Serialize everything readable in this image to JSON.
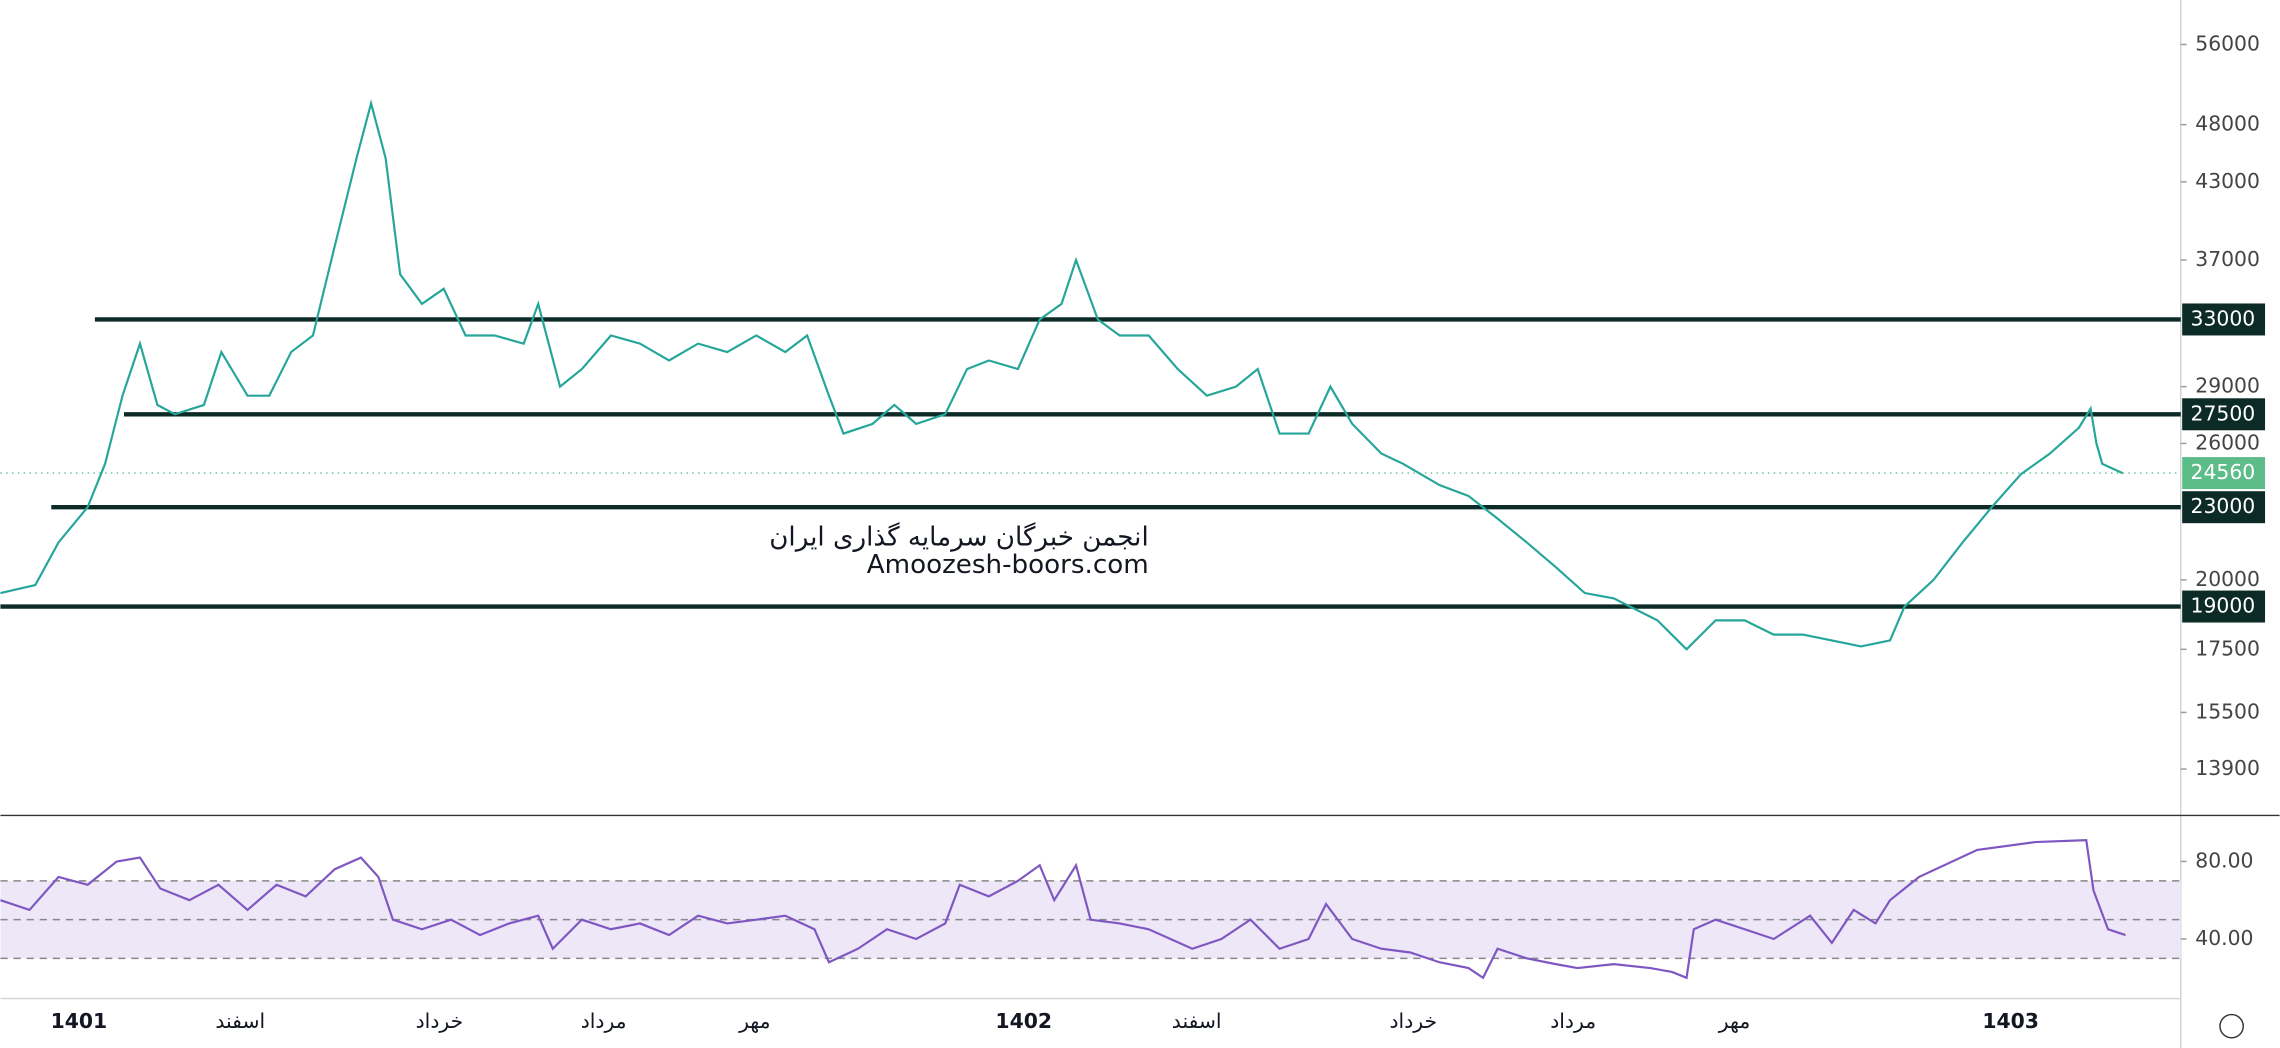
{
  "chart_data": [
    {
      "type": "line",
      "scale": "log",
      "watermark": [
        "انجمن خبرگان سرمایه گذاری ایران",
        "Amoozesh-boors.com"
      ],
      "xlim": [
        0,
        1500
      ],
      "ylim": [
        12750,
        61000
      ],
      "yticks": [
        56000,
        48000,
        43000,
        37000,
        29000,
        26000,
        20000,
        17500,
        15500,
        13900
      ],
      "levels": [
        33000,
        27500,
        23000,
        19000
      ],
      "level_starts": [
        65,
        85,
        35,
        0
      ],
      "level_color": "#0d2b26",
      "last_price": 24560,
      "last_price_color": "#5cbd88",
      "series": [
        {
          "color": "#26a69a",
          "x": [
            0,
            24,
            40,
            60,
            72,
            84,
            96,
            108,
            120,
            140,
            152,
            170,
            185,
            200,
            215,
            230,
            245,
            255,
            265,
            275,
            290,
            305,
            320,
            340,
            360,
            370,
            385,
            400,
            420,
            440,
            460,
            480,
            500,
            520,
            540,
            555,
            570,
            580,
            600,
            615,
            630,
            650,
            665,
            680,
            700,
            715,
            730,
            740,
            755,
            770,
            790,
            810,
            830,
            850,
            865,
            880,
            900,
            915,
            930,
            950,
            965,
            990,
            1010,
            1030,
            1050,
            1070,
            1090,
            1110,
            1140,
            1160,
            1180,
            1200,
            1220,
            1240,
            1260,
            1280,
            1300,
            1310,
            1330,
            1350,
            1370,
            1390,
            1410,
            1430,
            1438,
            1442,
            1446,
            1460
          ],
          "values": [
            19500,
            19800,
            21500,
            23000,
            25000,
            28500,
            31500,
            28000,
            27500,
            28000,
            31000,
            28500,
            28500,
            31000,
            32000,
            38000,
            45000,
            50000,
            45000,
            36000,
            34000,
            35000,
            32000,
            32000,
            31500,
            34000,
            29000,
            30000,
            32000,
            31500,
            30500,
            31500,
            31000,
            32000,
            31000,
            32000,
            28500,
            26500,
            27000,
            28000,
            27000,
            27500,
            30000,
            30500,
            30000,
            33000,
            34000,
            37000,
            33000,
            32000,
            32000,
            30000,
            28500,
            29000,
            30000,
            26500,
            26500,
            29000,
            27000,
            25500,
            25000,
            24000,
            23500,
            22500,
            21500,
            20500,
            19500,
            19300,
            18500,
            17500,
            18500,
            18500,
            18000,
            18000,
            17800,
            17600,
            17800,
            19000,
            20000,
            21500,
            23000,
            24500,
            25500,
            26800,
            27800,
            26000,
            25000,
            24560
          ]
        }
      ]
    },
    {
      "type": "line",
      "xlim": [
        0,
        1500
      ],
      "ylim": [
        10,
        103
      ],
      "yticks": [
        {
          "value": 80,
          "label": "80.00"
        },
        {
          "value": 40,
          "label": "40.00"
        }
      ],
      "band": [
        30,
        70
      ],
      "mid": 50,
      "band_color": "#ede7f8",
      "xticks": [
        {
          "value": 54,
          "label": "1401"
        },
        {
          "value": 165,
          "label": "اسفند"
        },
        {
          "value": 302,
          "label": "خرداد"
        },
        {
          "value": 415,
          "label": "مرداد"
        },
        {
          "value": 519,
          "label": "مهر"
        },
        {
          "value": 704,
          "label": "1402"
        },
        {
          "value": 823,
          "label": "اسفند"
        },
        {
          "value": 972,
          "label": "خرداد"
        },
        {
          "value": 1082,
          "label": "مرداد"
        },
        {
          "value": 1193,
          "label": "مهر"
        },
        {
          "value": 1383,
          "label": "1403"
        }
      ],
      "series": [
        {
          "color": "#7e57c2",
          "x": [
            0,
            20,
            40,
            60,
            80,
            96,
            110,
            130,
            150,
            170,
            190,
            210,
            230,
            248,
            260,
            270,
            290,
            310,
            330,
            350,
            370,
            380,
            400,
            420,
            440,
            460,
            480,
            500,
            520,
            540,
            560,
            570,
            590,
            610,
            630,
            650,
            660,
            680,
            700,
            715,
            725,
            740,
            750,
            770,
            790,
            820,
            840,
            860,
            880,
            900,
            912,
            930,
            950,
            970,
            990,
            1010,
            1020,
            1030,
            1050,
            1070,
            1085,
            1110,
            1135,
            1150,
            1160,
            1165,
            1180,
            1200,
            1220,
            1245,
            1260,
            1275,
            1290,
            1300,
            1320,
            1360,
            1400,
            1435,
            1440,
            1450,
            1462
          ],
          "values": [
            60,
            55,
            72,
            68,
            80,
            82,
            66,
            60,
            68,
            55,
            68,
            62,
            76,
            82,
            72,
            50,
            45,
            50,
            42,
            48,
            52,
            35,
            50,
            45,
            48,
            42,
            52,
            48,
            50,
            52,
            45,
            28,
            35,
            45,
            40,
            48,
            68,
            62,
            70,
            78,
            60,
            78,
            50,
            48,
            45,
            35,
            40,
            50,
            35,
            40,
            58,
            40,
            35,
            33,
            28,
            25,
            20,
            35,
            30,
            27,
            25,
            27,
            25,
            23,
            20,
            45,
            50,
            45,
            40,
            52,
            38,
            55,
            48,
            60,
            72,
            86,
            90,
            91,
            65,
            45,
            42
          ]
        }
      ]
    }
  ]
}
